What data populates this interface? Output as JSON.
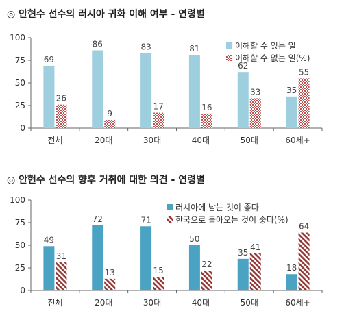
{
  "colors": {
    "chart1_series1": "#9dcfdf",
    "chart1_series2_pattern": "#c0504d",
    "chart2_series1": "#4ba3c3",
    "chart2_series2_pattern": "#953735"
  },
  "chart_data": [
    {
      "type": "bar",
      "title": "◎  안현수 선수의 러시아 귀화 이해 여부 - 연령별",
      "categories": [
        "전체",
        "20대",
        "30대",
        "40대",
        "50대",
        "60세+"
      ],
      "series": [
        {
          "name": "이해할 수 있는 일",
          "values": [
            69,
            86,
            83,
            81,
            62,
            35
          ]
        },
        {
          "name": "이해할 수 없는 일(%)",
          "values": [
            26,
            9,
            17,
            16,
            33,
            55
          ]
        }
      ],
      "ylim": [
        0,
        100
      ],
      "yticks": [
        0,
        25,
        50,
        75,
        100
      ],
      "legend": "top-right",
      "grid": false
    },
    {
      "type": "bar",
      "title": "◎  안현수 선수의 향후 거취에 대한 의견 - 연령별",
      "categories": [
        "전체",
        "20대",
        "30대",
        "40대",
        "50대",
        "60세+"
      ],
      "series": [
        {
          "name": "러시아에 남는 것이 좋다",
          "values": [
            49,
            72,
            71,
            50,
            35,
            18
          ]
        },
        {
          "name": "한국으로 돌아오는 것이 좋다(%)",
          "values": [
            31,
            13,
            15,
            22,
            41,
            64
          ]
        }
      ],
      "ylim": [
        0,
        100
      ],
      "yticks": [
        0,
        25,
        50,
        75,
        100
      ],
      "legend": "top-right",
      "grid": false
    }
  ]
}
